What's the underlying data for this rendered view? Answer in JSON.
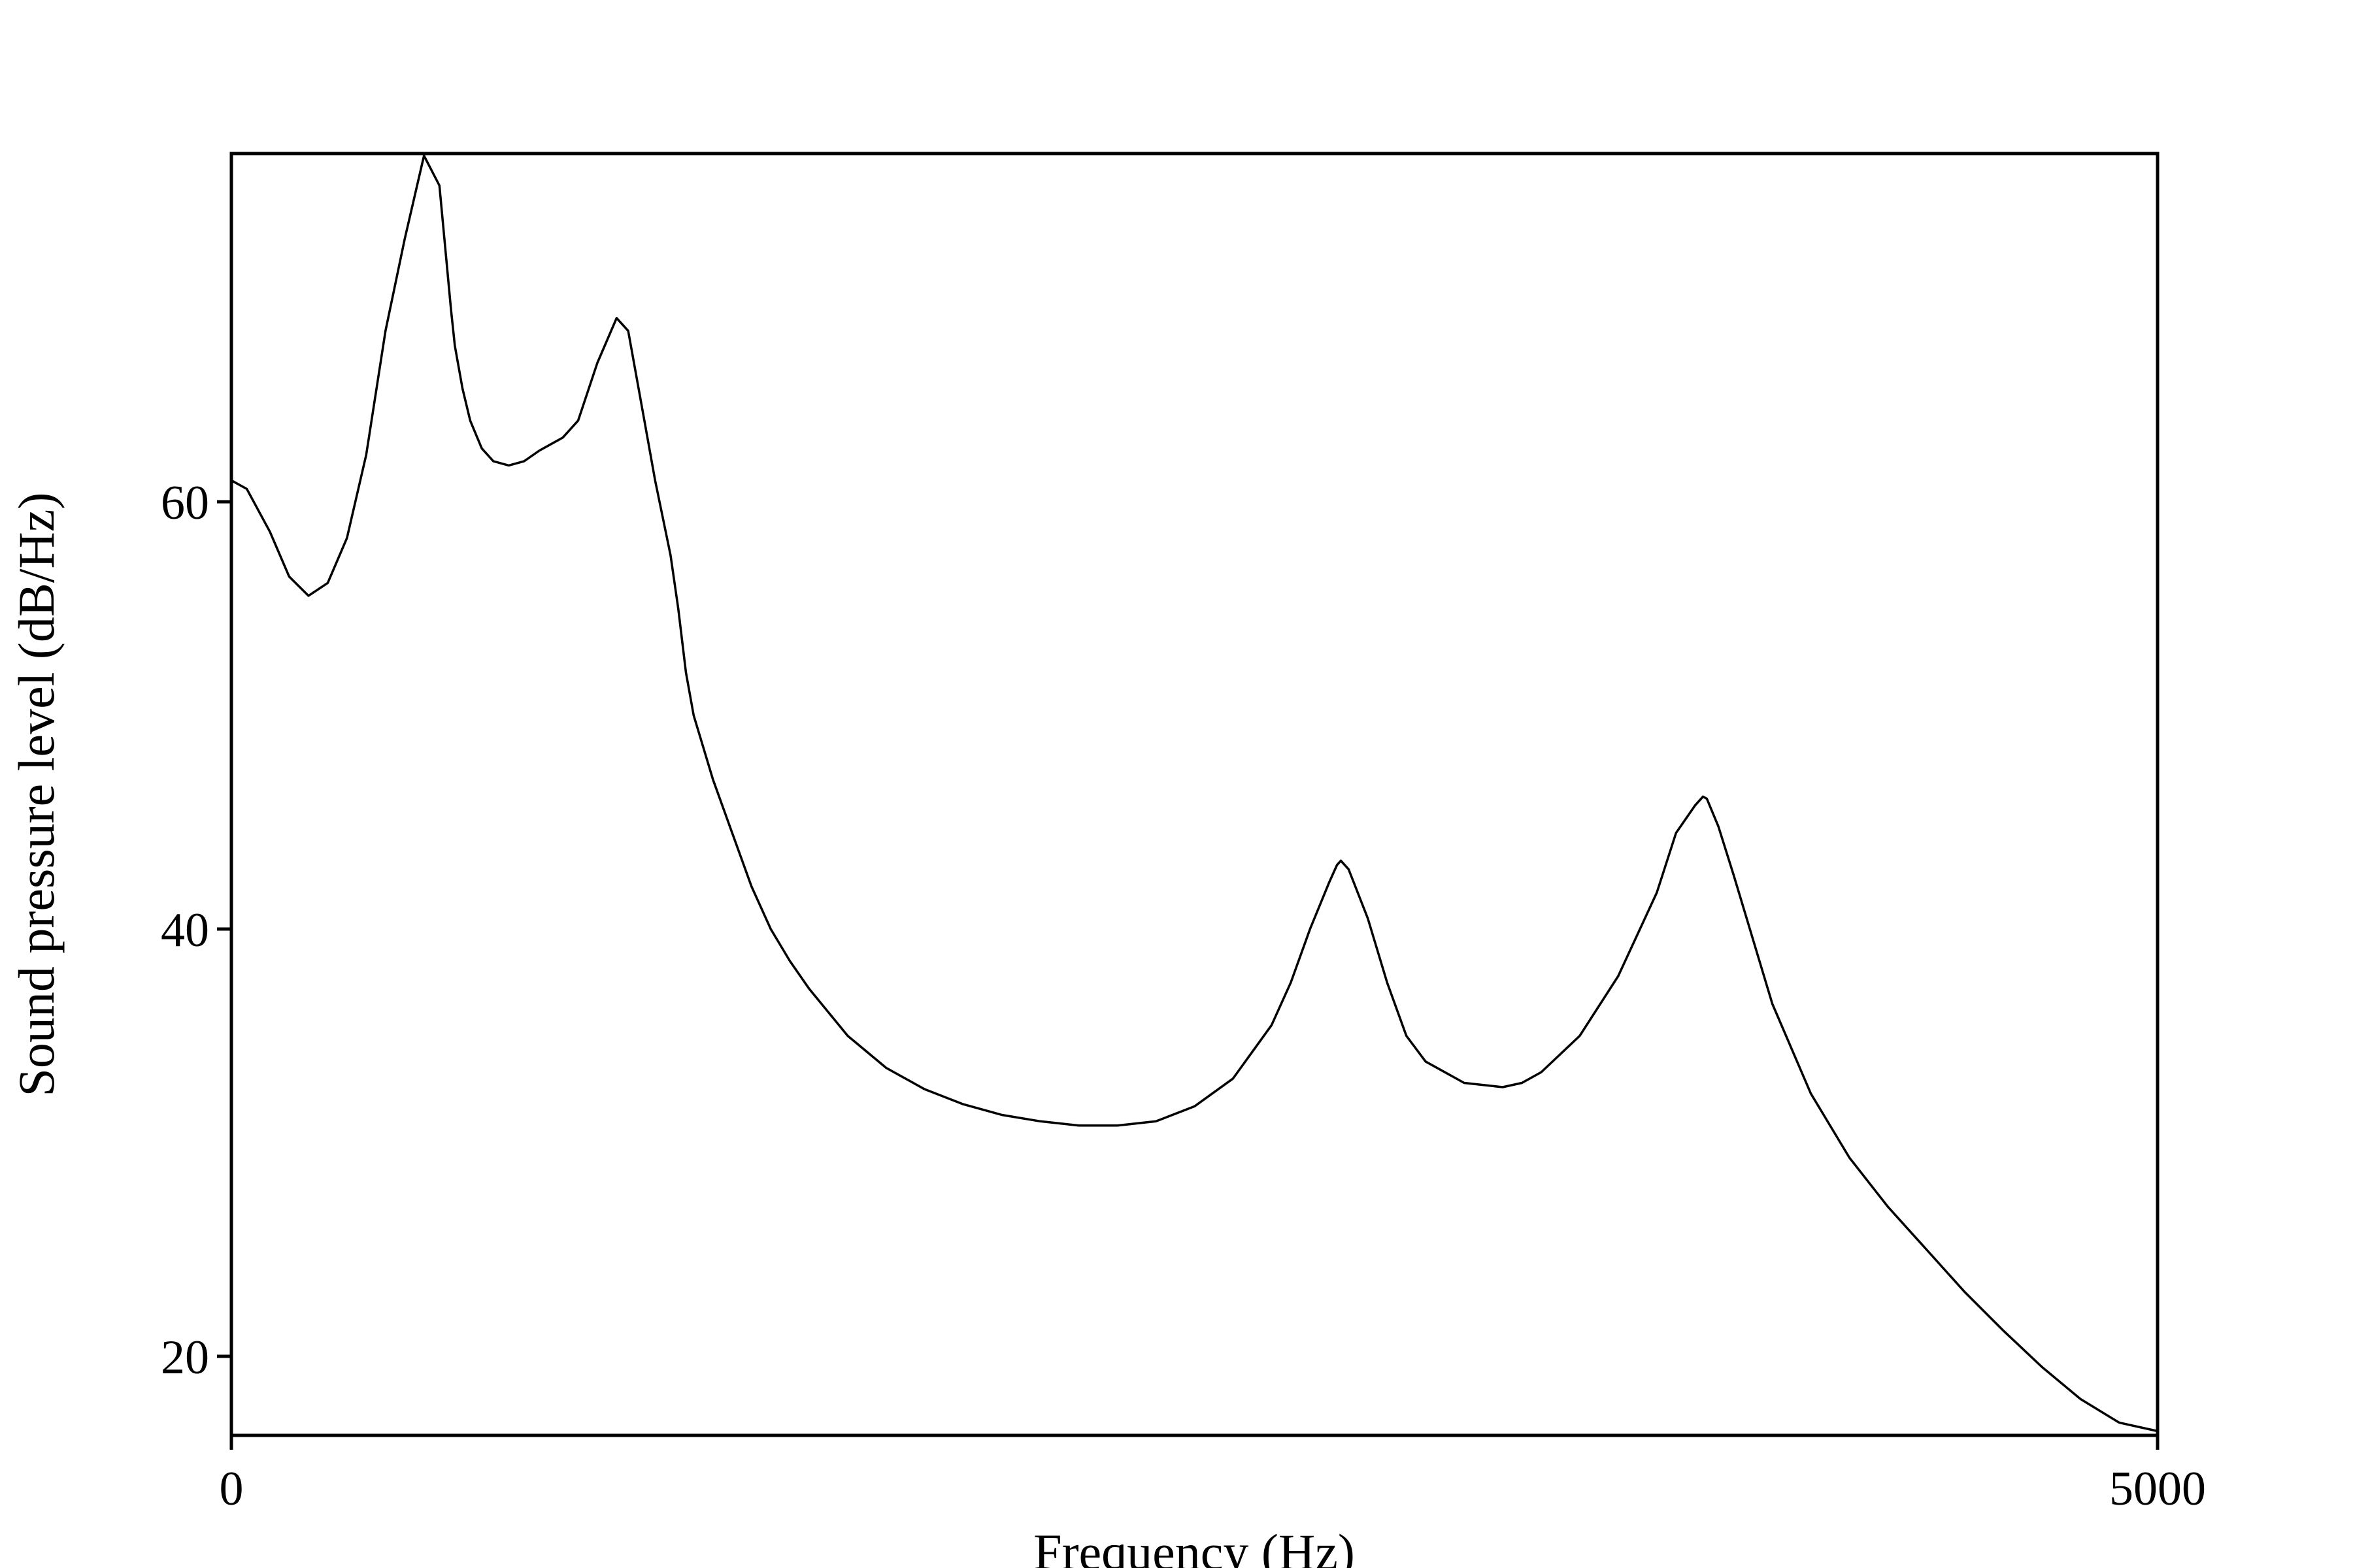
{
  "chart_data": {
    "type": "line",
    "xlabel": "Frequency (Hz)",
    "ylabel": "Sound pressure level (dB/Hz)",
    "xlim": [
      0,
      5000
    ],
    "ylim": [
      16.3,
      76.3
    ],
    "x_ticks": [
      0,
      5000
    ],
    "y_ticks": [
      20,
      40,
      60
    ],
    "x_tick_labels": [
      "0",
      "5000"
    ],
    "y_tick_labels": [
      "20",
      "40",
      "60"
    ],
    "grid": false,
    "line_color": "#000000",
    "series": [
      {
        "x": [
          0,
          40,
          100,
          150,
          200,
          250,
          300,
          350,
          400,
          450,
          500,
          540,
          570,
          580,
          600,
          620,
          650,
          680,
          720,
          760,
          800,
          830,
          860,
          900,
          950,
          1000,
          1030,
          1070,
          1100,
          1140,
          1160,
          1180,
          1200,
          1250,
          1300,
          1350,
          1400,
          1450,
          1500,
          1600,
          1700,
          1800,
          1900,
          2000,
          2100,
          2200,
          2300,
          2400,
          2500,
          2600,
          2700,
          2750,
          2800,
          2850,
          2870,
          2880,
          2900,
          2950,
          3000,
          3050,
          3100,
          3200,
          3300,
          3350,
          3400,
          3500,
          3600,
          3700,
          3750,
          3800,
          3820,
          3830,
          3860,
          3900,
          4000,
          4100,
          4200,
          4300,
          4400,
          4500,
          4600,
          4700,
          4800,
          4900,
          5000
        ],
        "y": [
          61.0,
          60.6,
          58.6,
          56.5,
          55.6,
          56.2,
          58.3,
          62.2,
          68.0,
          72.3,
          76.2,
          74.8,
          69.0,
          67.3,
          65.3,
          63.8,
          62.5,
          61.9,
          61.7,
          61.9,
          62.4,
          62.7,
          63.0,
          63.8,
          66.5,
          68.6,
          68.0,
          64.0,
          61.0,
          57.5,
          55.0,
          52.0,
          50.0,
          47.0,
          44.5,
          42.0,
          40.0,
          38.5,
          37.2,
          35.0,
          33.5,
          32.5,
          31.8,
          31.3,
          31.0,
          30.8,
          30.8,
          31.0,
          31.7,
          33.0,
          35.5,
          37.5,
          40.0,
          42.2,
          43.0,
          43.2,
          42.8,
          40.5,
          37.5,
          35.0,
          33.8,
          32.8,
          32.6,
          32.8,
          33.3,
          35.0,
          37.8,
          41.7,
          44.5,
          45.8,
          46.2,
          46.1,
          44.8,
          42.5,
          36.5,
          32.3,
          29.3,
          27.0,
          25.0,
          23.0,
          21.2,
          19.5,
          18.0,
          16.9,
          16.5
        ]
      }
    ]
  }
}
